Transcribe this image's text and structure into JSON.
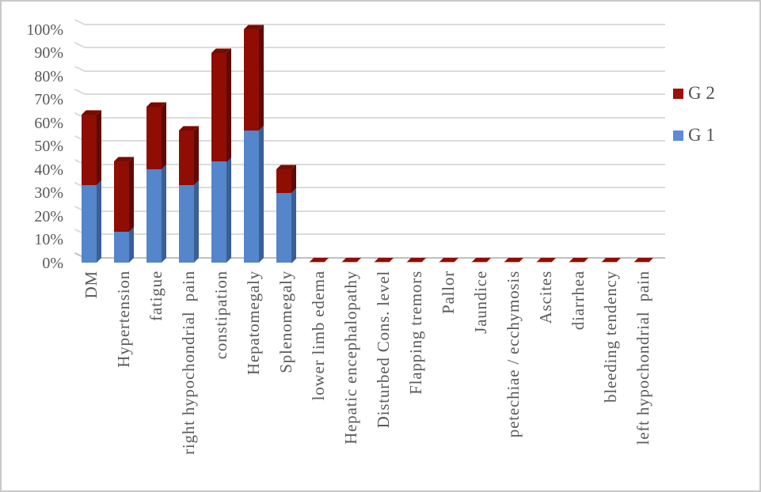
{
  "chart_data": {
    "type": "bar",
    "subtype": "3d-stacked-column",
    "title": "",
    "xlabel": "",
    "ylabel": "",
    "categories": [
      "DM",
      "Hypertension",
      "fatigue",
      "right hypochondrial  pain",
      "constipation",
      "Hepatomegaly",
      "Splenomegaly",
      "lower limb edema",
      "Hepatic encephalopathy",
      "Disturbed Cons. level",
      "Flapping tremors",
      "Pallor",
      "Jaundice",
      "petechiae / ecchymosis",
      "Ascites",
      "diarrhea",
      "bleeding tendency",
      "left hypochondrial  pain"
    ],
    "series": [
      {
        "name": "G 1",
        "values": [
          33.3,
          13.3,
          40,
          33.3,
          43.3,
          56.7,
          30,
          0,
          0,
          0,
          0,
          0,
          0,
          0,
          0,
          0,
          0,
          0
        ]
      },
      {
        "name": "G 2",
        "values": [
          30,
          30,
          26.7,
          23.3,
          46.7,
          43.3,
          10,
          0,
          0,
          0,
          0,
          0,
          0,
          0,
          0,
          0,
          0,
          0
        ]
      }
    ],
    "stacked": true,
    "ylim": [
      0,
      100
    ],
    "ytick_step": 10,
    "ytick_labels": [
      "0%",
      "10%",
      "20%",
      "30%",
      "40%",
      "50%",
      "60%",
      "70%",
      "80%",
      "90%",
      "100%"
    ],
    "grid": true,
    "legend_position": "right",
    "legend": [
      "G 2",
      "G 1"
    ]
  },
  "colors": {
    "g1_legend": "#5B8CD5",
    "g1_front": "#5585CA",
    "g1_side": "#3A5F94",
    "g2_legend": "#9B1108",
    "g2_front": "#8F0D03",
    "g2_side": "#5E0A02",
    "g2_top": "#740C02",
    "grid": "#DBDBDB",
    "axis_line": "#C0C0C0",
    "text": "#595959",
    "background": "#FFFFFF",
    "border": "#C9C9C9"
  }
}
